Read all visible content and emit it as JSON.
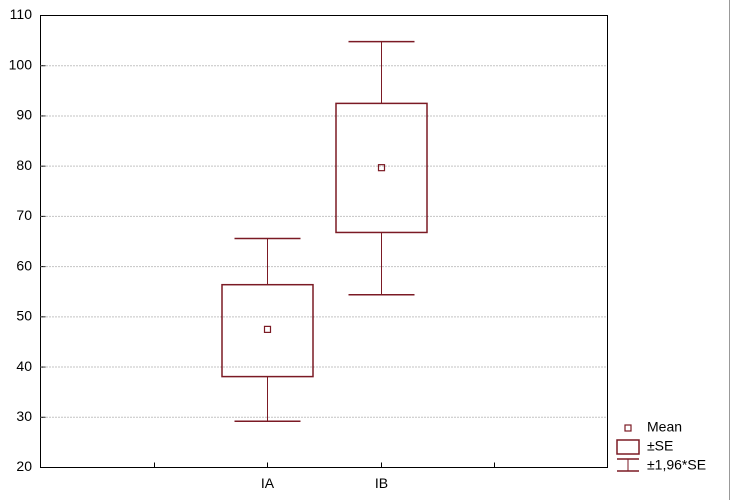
{
  "chart_data": {
    "type": "box",
    "categories": [
      null,
      "IA",
      "IB",
      null
    ],
    "series": [
      {
        "name": "Mean",
        "color": "#7b1a24",
        "mean": [
          null,
          47.5,
          79.7,
          null
        ],
        "box_low": [
          null,
          38.1,
          66.8,
          null
        ],
        "box_high": [
          null,
          56.4,
          92.5,
          null
        ],
        "whisker_low": [
          null,
          29.2,
          54.4,
          null
        ],
        "whisker_high": [
          null,
          65.6,
          104.8,
          null
        ]
      }
    ],
    "legend": [
      "Mean",
      "±SE",
      "±1,96*SE"
    ],
    "ylim": [
      20,
      110
    ],
    "yticks": [
      20,
      30,
      40,
      50,
      60,
      70,
      80,
      90,
      100,
      110
    ],
    "grid": true
  }
}
